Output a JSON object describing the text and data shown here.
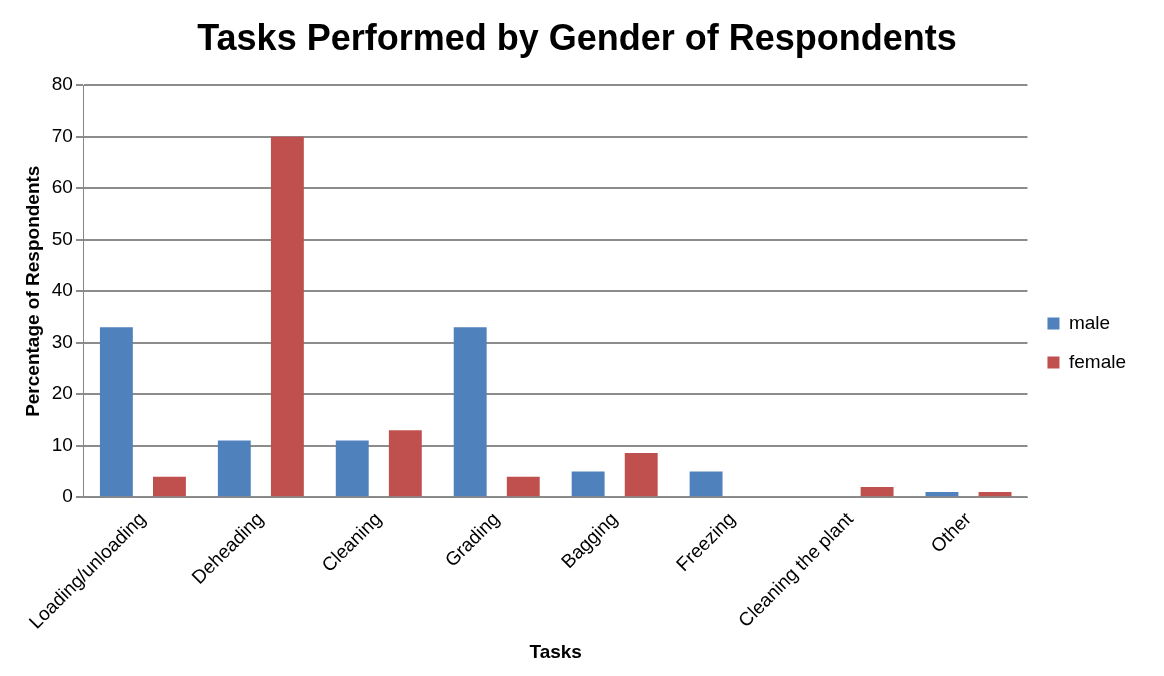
{
  "chart_data": {
    "type": "bar",
    "title": "Tasks Performed by Gender of Respondents",
    "xlabel": "Tasks",
    "ylabel": "Percentage of Respondents",
    "categories": [
      "Loading/unloading",
      "Deheading",
      "Cleaning",
      "Grading",
      "Bagging",
      "Freezing",
      "Cleaning the plant",
      "Other"
    ],
    "series": [
      {
        "name": "male",
        "color": "#4f81bd",
        "values": [
          33,
          11,
          11,
          33,
          5,
          5,
          0,
          1
        ]
      },
      {
        "name": "female",
        "color": "#c0504d",
        "values": [
          4,
          70,
          13,
          4,
          8.6,
          0,
          2,
          1
        ]
      }
    ],
    "ylim": [
      0,
      80
    ],
    "yticks": [
      0,
      10,
      20,
      30,
      40,
      50,
      60,
      70,
      80
    ],
    "grid": "y",
    "legend": "right"
  }
}
